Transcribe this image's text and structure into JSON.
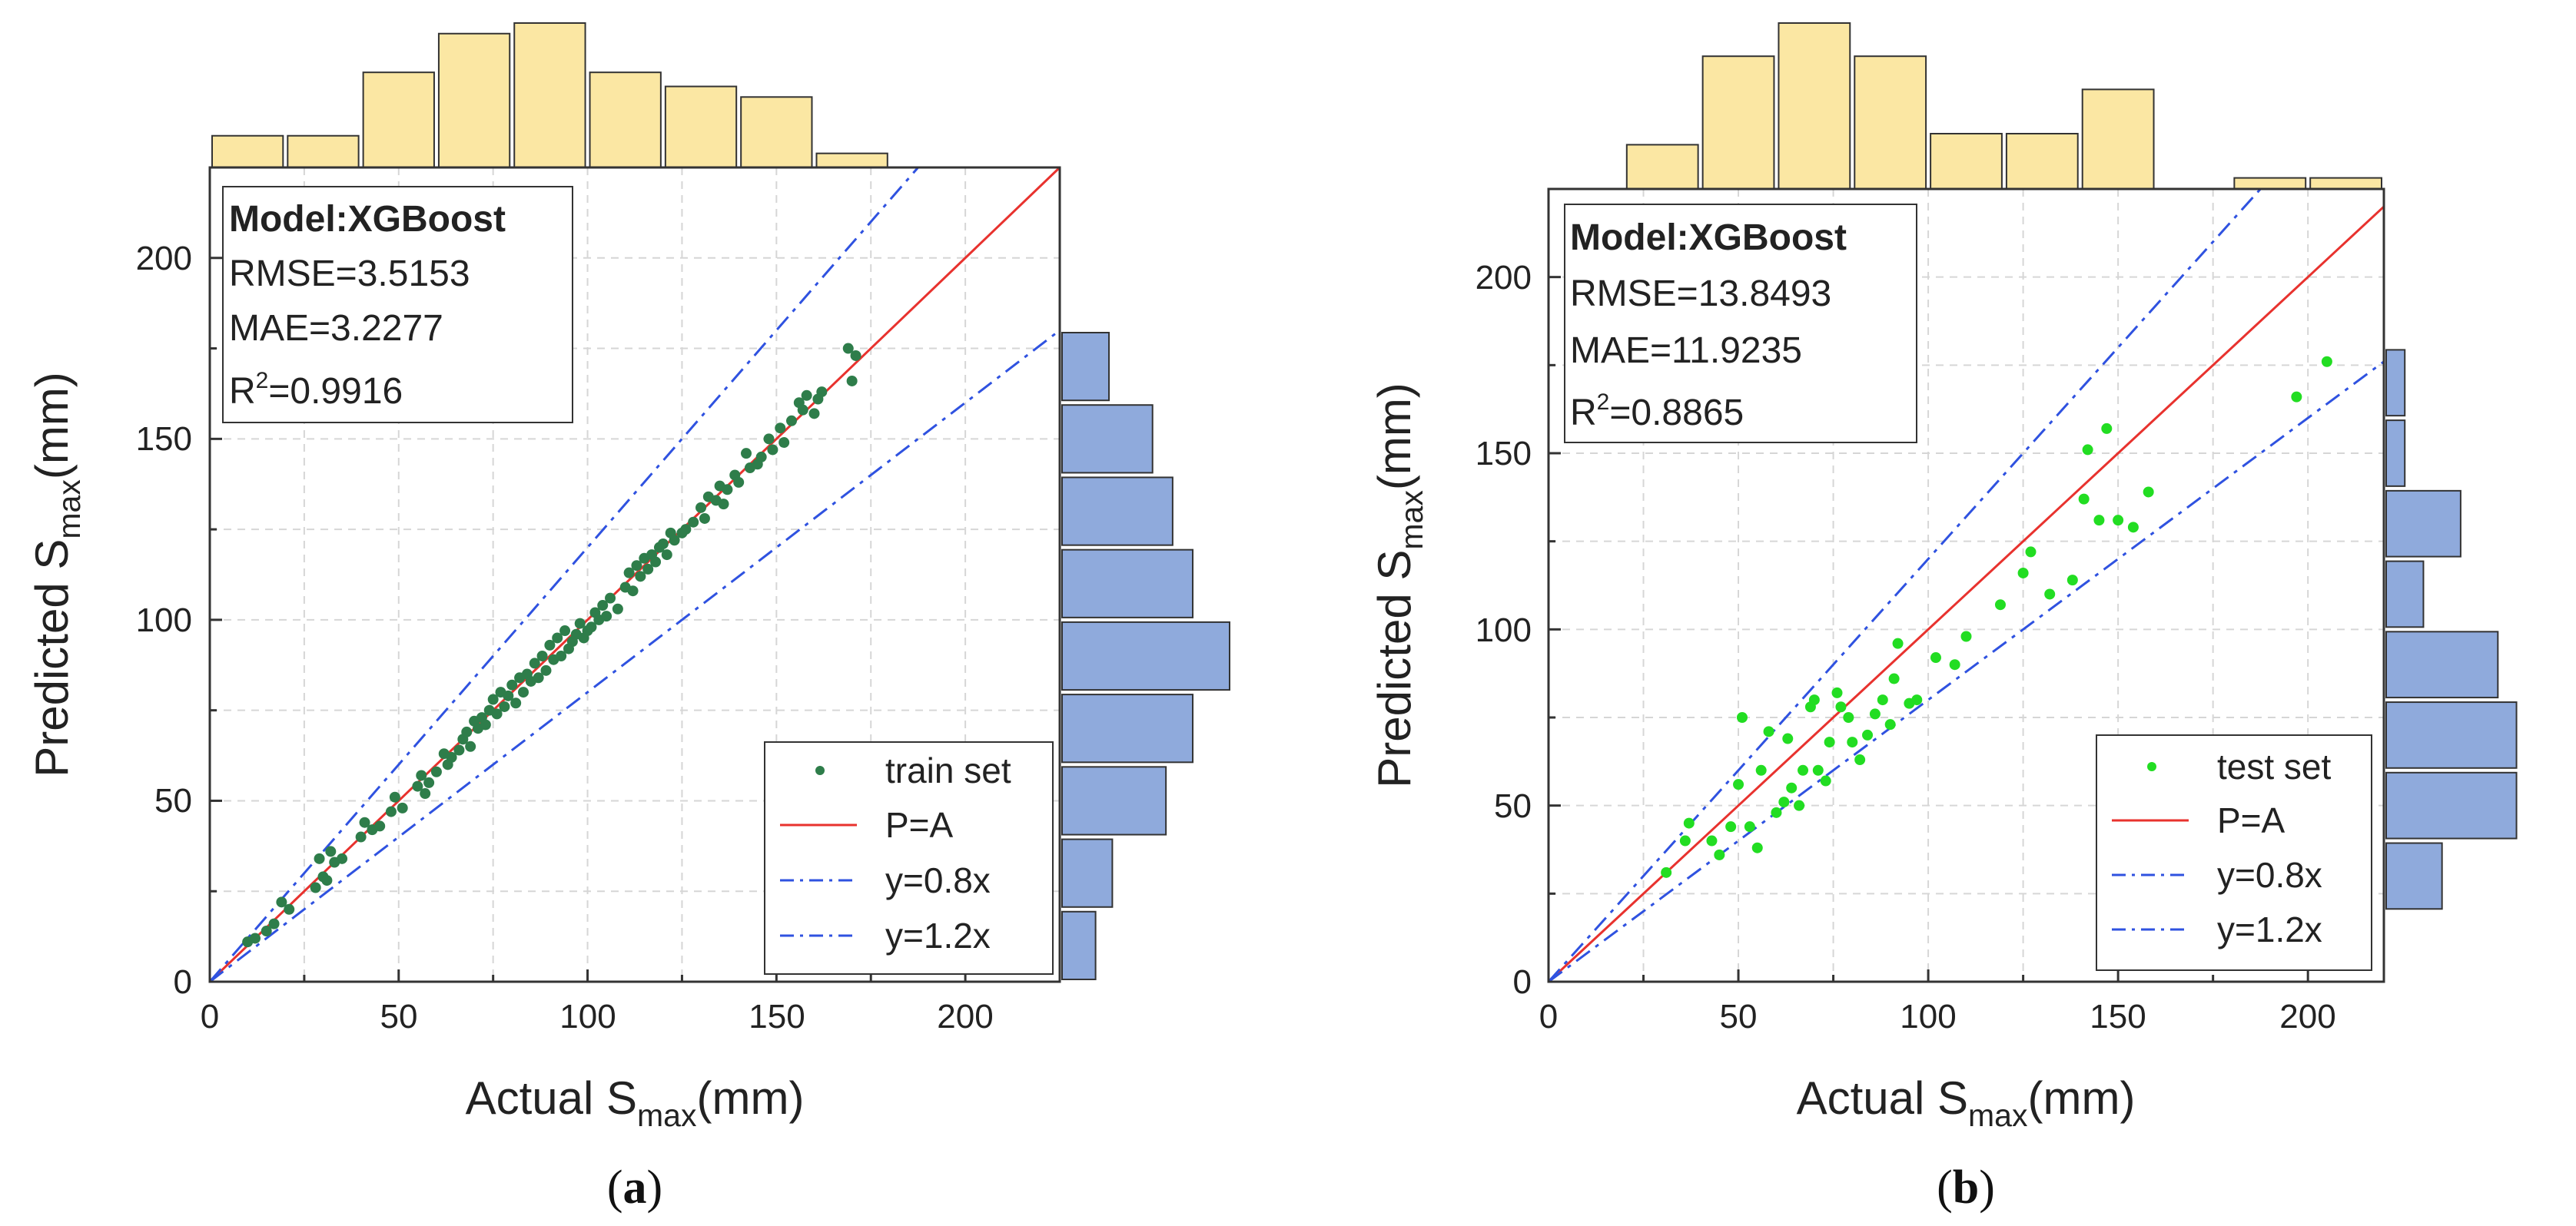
{
  "figure": {
    "colors": {
      "train_point": "#2e7d4a",
      "test_point": "#22dd22",
      "identity_line": "#e8322e",
      "bound_line": "#2f52e0",
      "hist_top": "#fbe7a3",
      "hist_right": "#8faadc",
      "grid": "#d6d6d6"
    }
  },
  "chart_data": [
    {
      "type": "scatter",
      "panel_label": {
        "open": "(",
        "letter": "a",
        "close": ")"
      },
      "xlabel": {
        "main": "Actual S",
        "sub": "max",
        "unit": "(mm)"
      },
      "ylabel": {
        "main": "Predicted S",
        "sub": "max",
        "unit": "(mm)"
      },
      "xlim": [
        0,
        225
      ],
      "ylim": [
        0,
        225
      ],
      "xticks": [
        "0",
        "50",
        "100",
        "150",
        "200"
      ],
      "yticks": [
        "0",
        "50",
        "100",
        "150",
        "200"
      ],
      "grid": true,
      "stats": {
        "model": "Model:XGBoost",
        "rmse": "RMSE=3.5153",
        "mae": "MAE=3.2277",
        "r2_prefix": "R",
        "r2_sup": "2",
        "r2_value": "=0.9916"
      },
      "legend": {
        "position": "bottom-right",
        "entries": [
          "train set",
          "P=A",
          "y=0.8x",
          "y=1.2x"
        ]
      },
      "lines": [
        {
          "name": "P=A",
          "slope": 1.0,
          "style": "solid"
        },
        {
          "name": "y=0.8x",
          "slope": 0.8,
          "style": "dashdot"
        },
        {
          "name": "y=1.2x",
          "slope": 1.2,
          "style": "dashdot"
        }
      ],
      "points": [
        [
          10,
          11
        ],
        [
          12,
          12
        ],
        [
          15,
          14
        ],
        [
          17,
          16
        ],
        [
          19,
          22
        ],
        [
          21,
          20
        ],
        [
          28,
          26
        ],
        [
          29,
          34
        ],
        [
          30,
          29
        ],
        [
          31,
          28
        ],
        [
          32,
          36
        ],
        [
          33,
          33
        ],
        [
          35,
          34
        ],
        [
          40,
          40
        ],
        [
          41,
          44
        ],
        [
          43,
          42
        ],
        [
          45,
          43
        ],
        [
          48,
          47
        ],
        [
          49,
          51
        ],
        [
          51,
          48
        ],
        [
          55,
          54
        ],
        [
          56,
          57
        ],
        [
          57,
          52
        ],
        [
          58,
          55
        ],
        [
          60,
          58
        ],
        [
          62,
          63
        ],
        [
          63,
          60
        ],
        [
          64,
          62
        ],
        [
          66,
          64
        ],
        [
          67,
          67
        ],
        [
          68,
          69
        ],
        [
          69,
          65
        ],
        [
          70,
          72
        ],
        [
          71,
          70
        ],
        [
          72,
          73
        ],
        [
          73,
          71
        ],
        [
          74,
          75
        ],
        [
          75,
          78
        ],
        [
          76,
          74
        ],
        [
          77,
          80
        ],
        [
          78,
          76
        ],
        [
          79,
          79
        ],
        [
          80,
          82
        ],
        [
          81,
          77
        ],
        [
          82,
          84
        ],
        [
          83,
          80
        ],
        [
          84,
          85
        ],
        [
          85,
          83
        ],
        [
          86,
          88
        ],
        [
          87,
          84
        ],
        [
          88,
          90
        ],
        [
          89,
          86
        ],
        [
          90,
          93
        ],
        [
          91,
          89
        ],
        [
          92,
          95
        ],
        [
          93,
          90
        ],
        [
          94,
          97
        ],
        [
          95,
          92
        ],
        [
          96,
          94
        ],
        [
          97,
          96
        ],
        [
          98,
          99
        ],
        [
          99,
          95
        ],
        [
          100,
          97
        ],
        [
          101,
          98
        ],
        [
          102,
          102
        ],
        [
          103,
          100
        ],
        [
          104,
          104
        ],
        [
          105,
          101
        ],
        [
          106,
          106
        ],
        [
          108,
          103
        ],
        [
          110,
          109
        ],
        [
          111,
          113
        ],
        [
          112,
          108
        ],
        [
          113,
          115
        ],
        [
          114,
          112
        ],
        [
          115,
          117
        ],
        [
          116,
          114
        ],
        [
          117,
          118
        ],
        [
          118,
          116
        ],
        [
          119,
          120
        ],
        [
          120,
          121
        ],
        [
          121,
          118
        ],
        [
          122,
          124
        ],
        [
          123,
          122
        ],
        [
          125,
          124
        ],
        [
          126,
          125
        ],
        [
          128,
          127
        ],
        [
          130,
          131
        ],
        [
          131,
          128
        ],
        [
          132,
          134
        ],
        [
          134,
          133
        ],
        [
          135,
          137
        ],
        [
          136,
          132
        ],
        [
          137,
          136
        ],
        [
          139,
          140
        ],
        [
          140,
          138
        ],
        [
          142,
          146
        ],
        [
          143,
          142
        ],
        [
          145,
          143
        ],
        [
          146,
          145
        ],
        [
          148,
          150
        ],
        [
          149,
          147
        ],
        [
          151,
          153
        ],
        [
          152,
          149
        ],
        [
          154,
          155
        ],
        [
          156,
          160
        ],
        [
          157,
          158
        ],
        [
          158,
          162
        ],
        [
          160,
          157
        ],
        [
          161,
          161
        ],
        [
          162,
          163
        ],
        [
          169,
          175
        ],
        [
          170,
          166
        ],
        [
          171,
          173
        ]
      ],
      "hist_top": {
        "bin_edges": [
          0,
          20,
          40,
          60,
          80,
          100,
          120,
          140,
          160,
          180,
          200
        ],
        "counts": [
          9,
          9,
          27,
          38,
          41,
          27,
          23,
          20,
          4,
          0
        ]
      },
      "hist_right": {
        "bin_edges": [
          0,
          20,
          40,
          60,
          80,
          100,
          120,
          140,
          160,
          180
        ],
        "counts": [
          10,
          15,
          31,
          39,
          50,
          39,
          33,
          27,
          14
        ]
      }
    },
    {
      "type": "scatter",
      "panel_label": {
        "open": "(",
        "letter": "b",
        "close": ")"
      },
      "xlabel": {
        "main": "Actual S",
        "sub": "max",
        "unit": "(mm)"
      },
      "ylabel": {
        "main": "Predicted S",
        "sub": "max",
        "unit": "(mm)"
      },
      "xlim": [
        0,
        220
      ],
      "ylim": [
        0,
        225
      ],
      "xticks": [
        "0",
        "50",
        "100",
        "150",
        "200"
      ],
      "yticks": [
        "0",
        "50",
        "100",
        "150",
        "200"
      ],
      "grid": true,
      "stats": {
        "model": "Model:XGBoost",
        "rmse": "RMSE=13.8493",
        "mae": "MAE=11.9235",
        "r2_prefix": "R",
        "r2_sup": "2",
        "r2_value": "=0.8865"
      },
      "legend": {
        "position": "bottom-right",
        "entries": [
          "test set",
          "P=A",
          "y=0.8x",
          "y=1.2x"
        ]
      },
      "lines": [
        {
          "name": "P=A",
          "slope": 1.0,
          "style": "solid"
        },
        {
          "name": "y=0.8x",
          "slope": 0.8,
          "style": "dashdot"
        },
        {
          "name": "y=1.2x",
          "slope": 1.2,
          "style": "dashdot"
        }
      ],
      "points": [
        [
          31,
          31
        ],
        [
          36,
          40
        ],
        [
          37,
          45
        ],
        [
          43,
          40
        ],
        [
          45,
          36
        ],
        [
          48,
          44
        ],
        [
          50,
          56
        ],
        [
          51,
          75
        ],
        [
          53,
          44
        ],
        [
          55,
          38
        ],
        [
          56,
          60
        ],
        [
          58,
          71
        ],
        [
          60,
          48
        ],
        [
          62,
          51
        ],
        [
          63,
          69
        ],
        [
          64,
          55
        ],
        [
          66,
          50
        ],
        [
          67,
          60
        ],
        [
          69,
          78
        ],
        [
          70,
          80
        ],
        [
          71,
          60
        ],
        [
          73,
          57
        ],
        [
          74,
          68
        ],
        [
          76,
          82
        ],
        [
          77,
          78
        ],
        [
          79,
          75
        ],
        [
          80,
          68
        ],
        [
          82,
          63
        ],
        [
          84,
          70
        ],
        [
          86,
          76
        ],
        [
          88,
          80
        ],
        [
          90,
          73
        ],
        [
          91,
          86
        ],
        [
          92,
          96
        ],
        [
          95,
          79
        ],
        [
          97,
          80
        ],
        [
          102,
          92
        ],
        [
          107,
          90
        ],
        [
          110,
          98
        ],
        [
          119,
          107
        ],
        [
          125,
          116
        ],
        [
          127,
          122
        ],
        [
          132,
          110
        ],
        [
          138,
          114
        ],
        [
          141,
          137
        ],
        [
          142,
          151
        ],
        [
          145,
          131
        ],
        [
          147,
          157
        ],
        [
          150,
          131
        ],
        [
          154,
          129
        ],
        [
          158,
          139
        ],
        [
          197,
          166
        ],
        [
          205,
          176
        ]
      ],
      "hist_top": {
        "bin_edges": [
          20,
          40,
          60,
          80,
          100,
          120,
          140,
          160,
          180,
          200,
          220
        ],
        "counts": [
          4,
          12,
          15,
          12,
          5,
          5,
          9,
          0,
          1,
          1
        ]
      },
      "hist_right": {
        "bin_edges": [
          20,
          40,
          60,
          80,
          100,
          120,
          140,
          160,
          180
        ],
        "counts": [
          3,
          7,
          7,
          6,
          2,
          4,
          1,
          1
        ]
      }
    }
  ]
}
